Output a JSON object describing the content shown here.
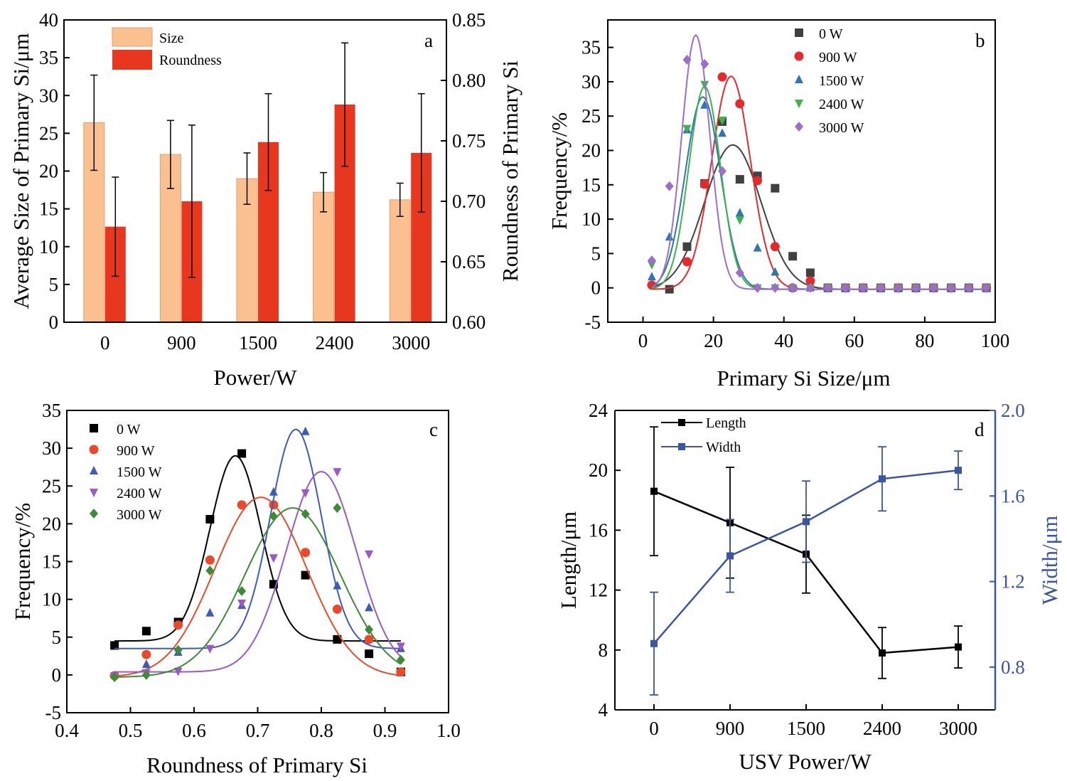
{
  "chart_data": [
    {
      "panel": "a",
      "type": "bar",
      "categories": [
        "0",
        "900",
        "1500",
        "2400",
        "3000"
      ],
      "xlabel": "Power/W",
      "ylabel": "Average Size of Primary Si/μm",
      "ylabel_right": "Roundness of Primary Si",
      "ylim": [
        0,
        40
      ],
      "ylim_right": [
        0.6,
        0.85
      ],
      "yticks": [
        "0",
        "5",
        "10",
        "15",
        "20",
        "25",
        "30",
        "35",
        "40"
      ],
      "yticks_right": [
        "0.60",
        "0.65",
        "0.70",
        "0.75",
        "0.80",
        "0.85"
      ],
      "series": [
        {
          "name": "Size",
          "axis": "left",
          "color": "#fac090",
          "values": [
            26.4,
            22.2,
            19.0,
            17.2,
            16.2
          ],
          "errors": [
            6.3,
            4.5,
            3.4,
            2.6,
            2.2
          ]
        },
        {
          "name": "Roundness",
          "axis": "right",
          "color": "#e8371f",
          "values": [
            0.679,
            0.7,
            0.749,
            0.78,
            0.74
          ],
          "errors": [
            0.041,
            0.063,
            0.04,
            0.051,
            0.049
          ]
        }
      ]
    },
    {
      "panel": "b",
      "type": "scatter",
      "xlabel": "Primary Si Size/μm",
      "ylabel": "Frequency/%",
      "xlim": [
        -10,
        100
      ],
      "ylim": [
        -5,
        39
      ],
      "xticks": [
        "0",
        "20",
        "40",
        "60",
        "80",
        "100"
      ],
      "yticks": [
        "-5",
        "0",
        "5",
        "10",
        "15",
        "20",
        "25",
        "30",
        "35"
      ],
      "series": [
        {
          "name": "0 W",
          "color": "#404040",
          "marker": "square",
          "x": [
            7.5,
            12.5,
            17.5,
            22.5,
            27.5,
            32.5,
            37.5,
            42.5,
            47.5,
            52.5,
            57.5,
            62.5,
            67.5,
            72.5,
            77.5,
            82.5,
            87.5,
            92.5,
            97.5
          ],
          "y": [
            -0.2,
            6.0,
            15.2,
            24.2,
            15.8,
            16.3,
            14.5,
            4.6,
            2.2,
            0,
            0,
            0,
            0,
            0,
            0,
            0,
            0,
            0,
            0
          ],
          "fit": {
            "center": 25.5,
            "sigma": 8.0,
            "amp": 21.0,
            "base": -0.2
          }
        },
        {
          "name": "900 W",
          "color": "#e32b2b",
          "marker": "circle",
          "x": [
            2.5,
            12.5,
            17.5,
            22.5,
            27.5,
            32.5,
            37.5,
            42.5,
            47.5,
            52.5,
            57.5,
            62.5,
            67.5,
            72.5,
            77.5,
            82.5,
            87.5,
            92.5,
            97.5
          ],
          "y": [
            0.4,
            3.8,
            15.1,
            30.7,
            26.8,
            15.6,
            6.0,
            0,
            1.0,
            0,
            0,
            0,
            0,
            0,
            0,
            0,
            0,
            0,
            0
          ],
          "fit": {
            "center": 25.0,
            "sigma": 5.5,
            "amp": 31.0,
            "base": -0.2
          }
        },
        {
          "name": "1500 W",
          "color": "#2e75b6",
          "marker": "triangle-up",
          "x": [
            2.5,
            7.5,
            12.5,
            17.5,
            22.5,
            27.5,
            32.5,
            37.5,
            42.5,
            47.5,
            52.5,
            57.5,
            62.5,
            67.5,
            72.5,
            77.5,
            82.5,
            87.5,
            92.5,
            97.5
          ],
          "y": [
            1.6,
            7.4,
            23.0,
            26.6,
            22.5,
            10.9,
            5.8,
            2.3,
            0,
            0,
            0,
            0,
            0,
            0,
            0,
            0,
            0,
            0,
            0,
            0
          ],
          "fit": {
            "center": 17.0,
            "sigma": 5.0,
            "amp": 28.0,
            "base": -0.2
          }
        },
        {
          "name": "2400 W",
          "color": "#3cb44b",
          "marker": "triangle-down",
          "x": [
            2.5,
            12.5,
            17.5,
            22.5,
            27.5,
            32.5,
            37.5,
            42.5,
            47.5,
            52.5,
            57.5,
            62.5,
            67.5,
            72.5,
            77.5,
            82.5,
            87.5,
            92.5,
            97.5
          ],
          "y": [
            3.4,
            23.2,
            29.6,
            24.4,
            9.9,
            0,
            0,
            0,
            0,
            0,
            0,
            0,
            0,
            0,
            0,
            0,
            0,
            0,
            0
          ],
          "fit": {
            "center": 17.5,
            "sigma": 4.5,
            "amp": 29.5,
            "base": -0.2
          }
        },
        {
          "name": "3000 W",
          "color": "#9b6fc7",
          "marker": "diamond",
          "x": [
            2.5,
            7.5,
            12.5,
            17.5,
            22.5,
            27.5,
            32.5,
            37.5,
            42.5,
            47.5,
            52.5,
            57.5,
            62.5,
            67.5,
            72.5,
            77.5,
            82.5,
            87.5,
            92.5,
            97.5
          ],
          "y": [
            4.0,
            14.8,
            33.2,
            32.6,
            17.0,
            2.2,
            0,
            0,
            0,
            0,
            0,
            0,
            0,
            0,
            0,
            0,
            0,
            0,
            0,
            0
          ],
          "fit": {
            "center": 15.0,
            "sigma": 4.0,
            "amp": 37.0,
            "base": -0.2
          }
        }
      ]
    },
    {
      "panel": "c",
      "type": "scatter",
      "xlabel": "Roundness of Primary Si",
      "ylabel": "Frequency/%",
      "xlim": [
        0.4,
        1.0
      ],
      "ylim": [
        -5,
        35
      ],
      "xticks": [
        "0.4",
        "0.5",
        "0.6",
        "0.7",
        "0.8",
        "0.9",
        "1.0"
      ],
      "yticks": [
        "-5",
        "0",
        "5",
        "10",
        "15",
        "20",
        "25",
        "30",
        "35"
      ],
      "series": [
        {
          "name": "0 W",
          "color": "#000000",
          "marker": "square",
          "x": [
            0.475,
            0.525,
            0.575,
            0.625,
            0.675,
            0.725,
            0.775,
            0.825,
            0.875,
            0.925
          ],
          "y": [
            3.9,
            5.8,
            7.0,
            20.6,
            29.3,
            12.0,
            13.2,
            4.7,
            2.8,
            0.4
          ],
          "fit": {
            "center": 0.665,
            "sigma": 0.04,
            "amp": 24.5,
            "base": 4.5
          }
        },
        {
          "name": "900 W",
          "color": "#e84a2a",
          "marker": "circle",
          "x": [
            0.475,
            0.525,
            0.575,
            0.625,
            0.675,
            0.725,
            0.775,
            0.825,
            0.875,
            0.925
          ],
          "y": [
            -0.1,
            2.7,
            6.6,
            15.2,
            22.5,
            22.5,
            16.2,
            8.7,
            4.7,
            0.4
          ],
          "fit": {
            "center": 0.705,
            "sigma": 0.072,
            "amp": 23.8,
            "base": -0.3
          }
        },
        {
          "name": "1500 W",
          "color": "#3b5cb8",
          "marker": "triangle-up",
          "x": [
            0.525,
            0.575,
            0.625,
            0.675,
            0.725,
            0.775,
            0.825,
            0.875,
            0.925
          ],
          "y": [
            1.4,
            3.0,
            8.2,
            9.2,
            24.2,
            32.2,
            11.8,
            8.9,
            3.5
          ],
          "fit": {
            "center": 0.76,
            "sigma": 0.04,
            "amp": 29.0,
            "base": 3.5
          }
        },
        {
          "name": "2400 W",
          "color": "#9b59c6",
          "marker": "triangle-down",
          "x": [
            0.475,
            0.525,
            0.575,
            0.625,
            0.675,
            0.725,
            0.775,
            0.825,
            0.875,
            0.925
          ],
          "y": [
            -0.1,
            0.3,
            0.5,
            3.5,
            9.5,
            15.5,
            24.1,
            26.9,
            16.0,
            3.8
          ],
          "fit": {
            "center": 0.8,
            "sigma": 0.055,
            "amp": 26.5,
            "base": 0.4
          }
        },
        {
          "name": "3000 W",
          "color": "#3d8b37",
          "marker": "diamond",
          "x": [
            0.475,
            0.525,
            0.575,
            0.625,
            0.675,
            0.725,
            0.775,
            0.825,
            0.875,
            0.925
          ],
          "y": [
            -0.3,
            0.0,
            3.3,
            13.8,
            11.1,
            21.0,
            21.3,
            22.1,
            6.0,
            2.0
          ],
          "fit": {
            "center": 0.755,
            "sigma": 0.075,
            "amp": 22.4,
            "base": -0.3
          }
        }
      ]
    },
    {
      "panel": "d",
      "type": "line",
      "xlabel": "USV Power/W",
      "ylabel": "Length/μm",
      "ylabel_right": "Width/μm",
      "categories": [
        "0",
        "900",
        "1500",
        "2400",
        "3000"
      ],
      "ylim": [
        4,
        24
      ],
      "ylim_right": [
        0.6,
        2.0
      ],
      "yticks": [
        "4",
        "8",
        "12",
        "16",
        "20",
        "24"
      ],
      "yticks_right": [
        "0.8",
        "1.2",
        "1.6",
        "2.0"
      ],
      "series": [
        {
          "name": "Length",
          "axis": "left",
          "color": "#000000",
          "values": [
            18.6,
            16.5,
            14.4,
            7.8,
            8.2
          ],
          "errors": [
            4.3,
            3.7,
            2.6,
            1.7,
            1.4
          ]
        },
        {
          "name": "Width",
          "axis": "right",
          "color": "#3a55a4",
          "values": [
            0.91,
            1.32,
            1.48,
            1.68,
            1.72
          ],
          "errors": [
            0.24,
            0.17,
            0.19,
            0.15,
            0.09
          ]
        }
      ]
    }
  ]
}
